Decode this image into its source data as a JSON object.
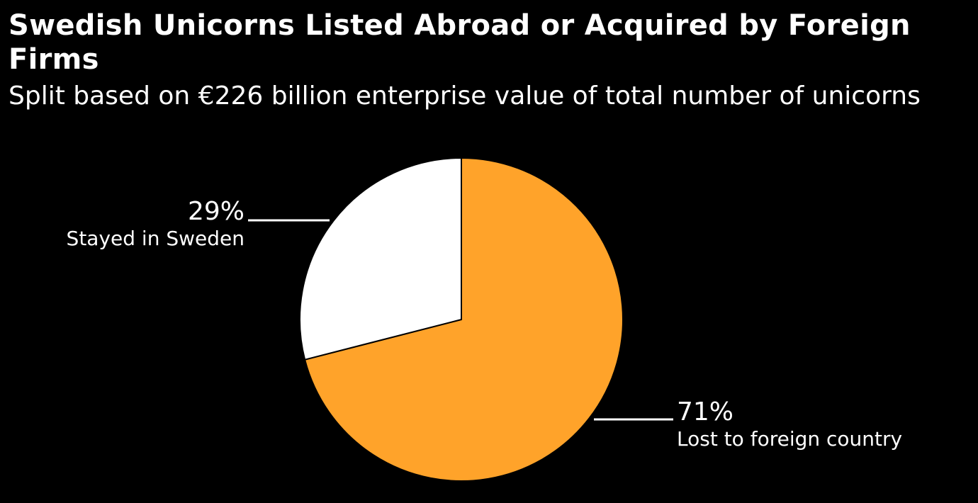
{
  "chart_data": {
    "type": "pie",
    "title": "Swedish Unicorns Listed Abroad or Acquired by Foreign Firms",
    "subtitle": "Split based on €226 billion enterprise value of total number of unicorns",
    "slices": [
      {
        "label": "Lost to foreign country",
        "value": 71,
        "value_label": "71%",
        "color": "#FFA32A"
      },
      {
        "label": "Stayed in Sweden",
        "value": 29,
        "value_label": "29%",
        "color": "#FFFFFF"
      }
    ],
    "legend": "none"
  }
}
